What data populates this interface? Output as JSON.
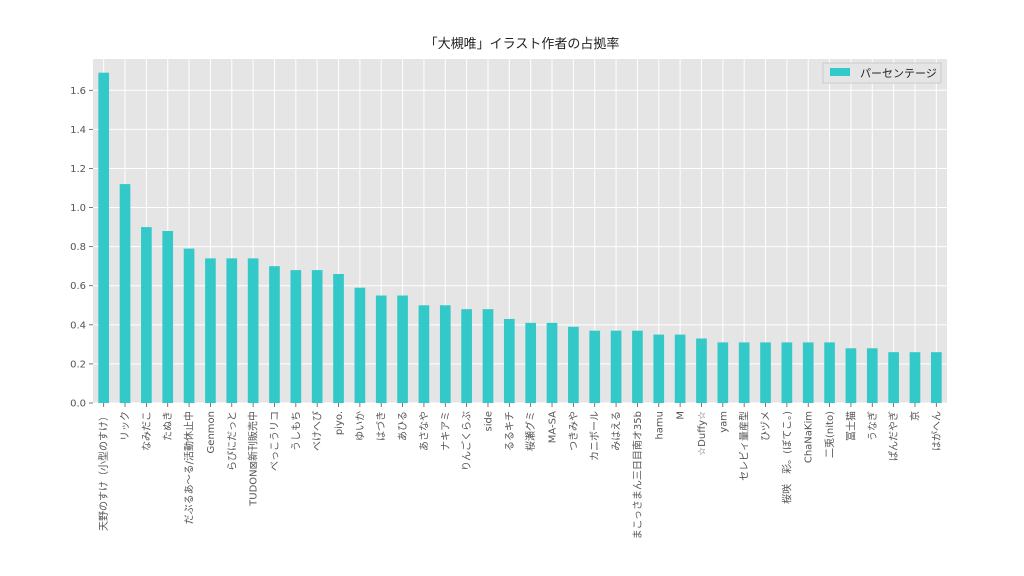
{
  "chart_data": {
    "type": "bar",
    "title": "「大槻唯」イラスト作者の占拠率",
    "xlabel": "",
    "ylabel": "",
    "ylim": [
      0,
      1.76
    ],
    "yticks": [
      "0.0",
      "0.2",
      "0.4",
      "0.6",
      "0.8",
      "1.0",
      "1.2",
      "1.4",
      "1.6"
    ],
    "grid": true,
    "legend_position": "top-right",
    "bar_color": "#33c9c9",
    "background_color": "#e5e5e5",
    "categories": [
      "天野のすけ（小型のすけ）",
      "リック",
      "なみだこ",
      "たぬき",
      "だぶるあ～る/活動休止中",
      "Genmon",
      "らぴにだっと",
      "TUDON⊠新刊販売中",
      "べっこうリコ",
      "うしもち",
      "べけへぴ",
      "piyo.",
      "ゆいか",
      "はづき",
      "あひる",
      "あさなや",
      "ナキアミ",
      "りんごくらぶ",
      "side",
      "るるキチ",
      "桜瀬グミ",
      "MA-SA",
      "つきみや",
      "カニボール",
      "みはえる",
      "まこっさまん三日目南オ35b",
      "hamu",
      "M",
      "☆Duffy☆",
      "yam",
      "セレビィ量産型",
      "ひヅメ",
      "桜咲　彩。(ぼてこ。)",
      "ChaNaKim",
      "二兎(nito)",
      "冨士猫",
      "うなぎ",
      "ぱんだやぎ",
      "京",
      "はがへん"
    ],
    "series": [
      {
        "name": "パーセンテージ",
        "values": [
          1.69,
          1.12,
          0.9,
          0.88,
          0.79,
          0.74,
          0.74,
          0.74,
          0.7,
          0.68,
          0.68,
          0.66,
          0.59,
          0.55,
          0.55,
          0.5,
          0.5,
          0.48,
          0.48,
          0.43,
          0.41,
          0.41,
          0.39,
          0.37,
          0.37,
          0.37,
          0.35,
          0.35,
          0.33,
          0.31,
          0.31,
          0.31,
          0.31,
          0.31,
          0.31,
          0.28,
          0.28,
          0.26,
          0.26,
          0.26
        ]
      }
    ]
  }
}
